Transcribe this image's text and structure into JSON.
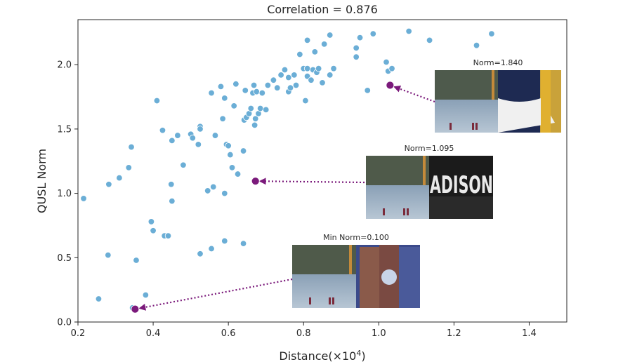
{
  "chart_data": {
    "type": "scatter",
    "title": "Correlation = 0.876",
    "xlabel": "Distance(×10",
    "xlabel_exponent": "4",
    "xlabel_close": ")",
    "ylabel": "QUSL Norm",
    "xlim": [
      0.2,
      1.5
    ],
    "ylim": [
      0.0,
      2.35
    ],
    "xticks": [
      0.2,
      0.4,
      0.6,
      0.8,
      1.0,
      1.2,
      1.4
    ],
    "xtick_labels": [
      "0.2",
      "0.4",
      "0.6",
      "0.8",
      "1.0",
      "1.2",
      "1.4"
    ],
    "yticks": [
      0.0,
      0.5,
      1.0,
      1.5,
      2.0
    ],
    "ytick_labels": [
      "0.0",
      "0.5",
      "1.0",
      "1.5",
      "2.0"
    ],
    "point_color": "#6baed6",
    "highlight_color": "#7b1a7b",
    "points": [
      [
        0.215,
        0.96
      ],
      [
        0.255,
        0.18
      ],
      [
        0.28,
        0.52
      ],
      [
        0.282,
        1.07
      ],
      [
        0.31,
        1.12
      ],
      [
        0.335,
        1.2
      ],
      [
        0.342,
        1.36
      ],
      [
        0.345,
        0.11
      ],
      [
        0.355,
        0.48
      ],
      [
        0.38,
        0.21
      ],
      [
        0.395,
        0.78
      ],
      [
        0.4,
        0.71
      ],
      [
        0.41,
        1.72
      ],
      [
        0.425,
        1.49
      ],
      [
        0.43,
        0.67
      ],
      [
        0.44,
        0.67
      ],
      [
        0.45,
        1.41
      ],
      [
        0.448,
        1.07
      ],
      [
        0.45,
        0.94
      ],
      [
        0.465,
        1.45
      ],
      [
        0.48,
        1.22
      ],
      [
        0.5,
        1.46
      ],
      [
        0.505,
        1.43
      ],
      [
        0.52,
        1.38
      ],
      [
        0.525,
        1.52
      ],
      [
        0.525,
        1.5
      ],
      [
        0.525,
        0.53
      ],
      [
        0.545,
        1.02
      ],
      [
        0.555,
        0.57
      ],
      [
        0.555,
        1.78
      ],
      [
        0.56,
        1.05
      ],
      [
        0.565,
        1.45
      ],
      [
        0.58,
        1.83
      ],
      [
        0.585,
        1.58
      ],
      [
        0.59,
        0.63
      ],
      [
        0.59,
        1.0
      ],
      [
        0.59,
        1.74
      ],
      [
        0.595,
        1.38
      ],
      [
        0.6,
        1.37
      ],
      [
        0.605,
        1.3
      ],
      [
        0.615,
        1.68
      ],
      [
        0.61,
        1.2
      ],
      [
        0.62,
        1.85
      ],
      [
        0.625,
        1.15
      ],
      [
        0.64,
        0.61
      ],
      [
        0.64,
        1.33
      ],
      [
        0.642,
        1.57
      ],
      [
        0.645,
        1.8
      ],
      [
        0.648,
        1.59
      ],
      [
        0.655,
        1.62
      ],
      [
        0.66,
        1.66
      ],
      [
        0.665,
        1.78
      ],
      [
        0.668,
        1.84
      ],
      [
        0.67,
        1.53
      ],
      [
        0.672,
        1.58
      ],
      [
        0.675,
        1.79
      ],
      [
        0.68,
        1.62
      ],
      [
        0.685,
        1.66
      ],
      [
        0.69,
        1.78
      ],
      [
        0.7,
        1.65
      ],
      [
        0.705,
        1.84
      ],
      [
        0.72,
        1.88
      ],
      [
        0.73,
        1.82
      ],
      [
        0.74,
        1.92
      ],
      [
        0.75,
        1.96
      ],
      [
        0.76,
        1.79
      ],
      [
        0.76,
        1.9
      ],
      [
        0.765,
        1.82
      ],
      [
        0.775,
        1.92
      ],
      [
        0.78,
        1.84
      ],
      [
        0.79,
        2.08
      ],
      [
        0.8,
        1.97
      ],
      [
        0.805,
        1.72
      ],
      [
        0.81,
        1.91
      ],
      [
        0.81,
        1.97
      ],
      [
        0.81,
        2.19
      ],
      [
        0.82,
        1.88
      ],
      [
        0.825,
        1.96
      ],
      [
        0.83,
        2.1
      ],
      [
        0.835,
        1.94
      ],
      [
        0.84,
        1.97
      ],
      [
        0.85,
        1.86
      ],
      [
        0.855,
        2.16
      ],
      [
        0.87,
        1.92
      ],
      [
        0.87,
        2.23
      ],
      [
        0.88,
        1.97
      ],
      [
        0.94,
        2.06
      ],
      [
        0.94,
        2.13
      ],
      [
        0.95,
        2.21
      ],
      [
        0.97,
        1.8
      ],
      [
        0.985,
        2.24
      ],
      [
        1.02,
        2.02
      ],
      [
        1.025,
        1.95
      ],
      [
        1.035,
        1.97
      ],
      [
        1.08,
        2.26
      ],
      [
        1.135,
        2.19
      ],
      [
        1.26,
        2.15
      ],
      [
        1.3,
        2.24
      ]
    ],
    "highlighted": [
      {
        "x": 0.352,
        "y": 0.1,
        "label": "Min Norm=0.100"
      },
      {
        "x": 0.672,
        "y": 1.095,
        "label": "Norm=1.095"
      },
      {
        "x": 1.03,
        "y": 1.84,
        "label": "Norm=1.840"
      }
    ]
  }
}
